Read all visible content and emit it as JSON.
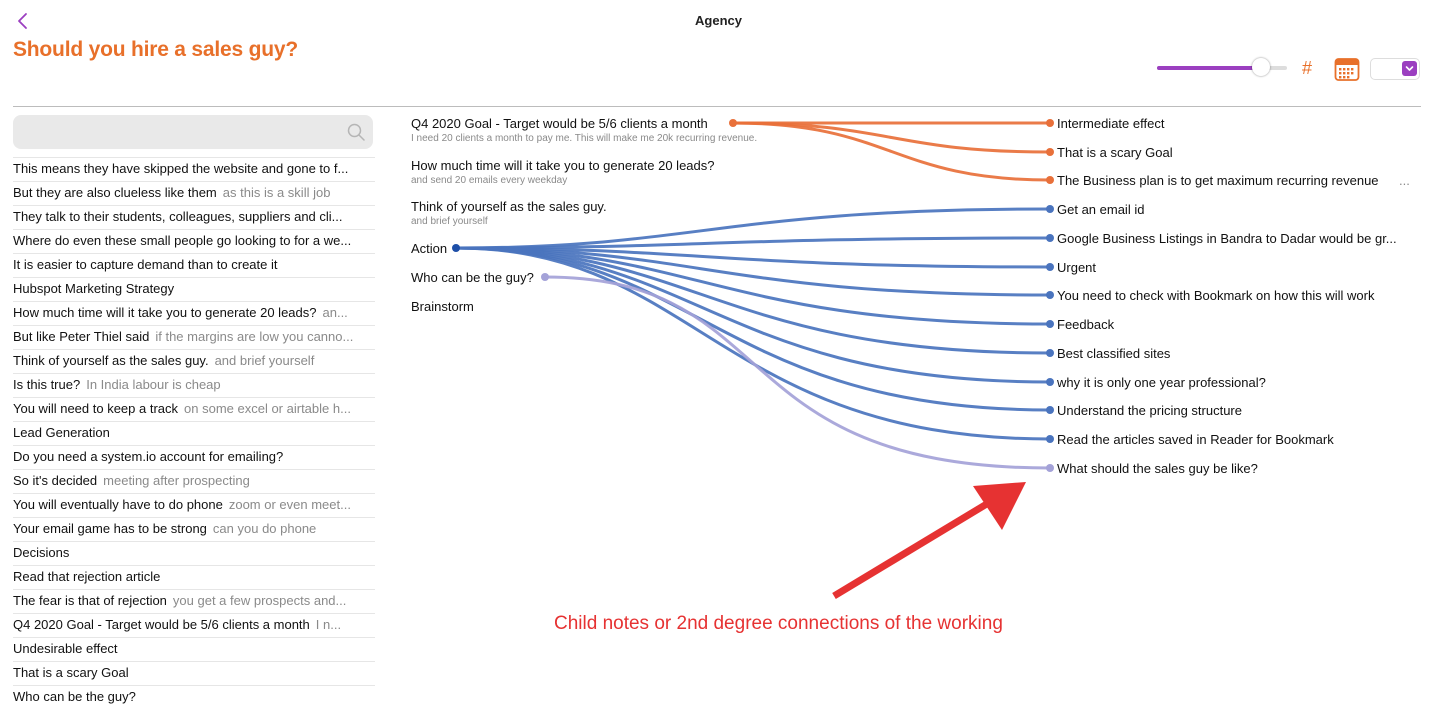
{
  "window": {
    "title": "Agency"
  },
  "page": {
    "title": "Should you hire a sales guy?"
  },
  "toolbar": {
    "hash_symbol": "#",
    "slider_value": 0.8,
    "accent": "#9B3FC0",
    "orange": "#E8702A",
    "calendar_icon": "calendar-icon",
    "back_icon": "chevron-left-icon"
  },
  "search": {
    "value": "",
    "placeholder": ""
  },
  "notes": [
    {
      "title": "This means they have skipped the website and gone to f...",
      "sub": ""
    },
    {
      "title": "But they are also clueless like them",
      "sub": "as this is a skill job"
    },
    {
      "title": "They talk to their students, colleagues, suppliers and cli...",
      "sub": ""
    },
    {
      "title": "Where do even these small people go looking to for a we...",
      "sub": ""
    },
    {
      "title": "It is easier to capture demand than to create it",
      "sub": ""
    },
    {
      "title": "Hubspot Marketing Strategy",
      "sub": ""
    },
    {
      "title": "How much time will it take you to generate 20 leads?",
      "sub": "an..."
    },
    {
      "title": "But like Peter Thiel said",
      "sub": "if the margins are low you canno..."
    },
    {
      "title": "Think of yourself as the sales guy.",
      "sub": "and brief yourself"
    },
    {
      "title": "Is this true?",
      "sub": "In India labour is cheap"
    },
    {
      "title": "You will need to keep a track",
      "sub": "on some excel or airtable h..."
    },
    {
      "title": "Lead Generation",
      "sub": ""
    },
    {
      "title": "Do you need a system.io account for emailing?",
      "sub": ""
    },
    {
      "title": "So it's decided",
      "sub": "meeting after prospecting"
    },
    {
      "title": "You will eventually have to do phone",
      "sub": "zoom or even meet..."
    },
    {
      "title": "Your email game has to be strong",
      "sub": "can you do phone"
    },
    {
      "title": "Decisions",
      "sub": ""
    },
    {
      "title": "Read that rejection article",
      "sub": ""
    },
    {
      "title": "The fear is that of rejection",
      "sub": "you get a few prospects and..."
    },
    {
      "title": "Q4 2020 Goal - Target would be 5/6 clients a month",
      "sub": "I n..."
    },
    {
      "title": "Undesirable effect",
      "sub": ""
    },
    {
      "title": "That is a scary Goal",
      "sub": ""
    },
    {
      "title": "Who can be the guy?",
      "sub": ""
    }
  ],
  "graph": {
    "colors": {
      "orange": "#E8703A",
      "blue_dark": "#1E4FA8",
      "blue": "#4A74BE",
      "lavender": "#A4A2D8"
    },
    "sources": [
      {
        "title": "Q4 2020 Goal - Target would be 5/6 clients a month",
        "sub": "I need 20 clients a month to pay me. This will make me 20k recurring revenue."
      },
      {
        "title": "How much time will it take you to generate 20 leads?",
        "sub": "and send 20 emails every weekday"
      },
      {
        "title": "Think of yourself as the sales guy.",
        "sub": "and brief yourself"
      },
      {
        "title": "Action",
        "sub": ""
      },
      {
        "title": "Who can be the guy?",
        "sub": ""
      },
      {
        "title": "Brainstorm",
        "sub": ""
      }
    ],
    "targets": [
      {
        "title": "Intermediate effect",
        "sub": ""
      },
      {
        "title": "That is a scary Goal",
        "sub": ""
      },
      {
        "title": "The Business plan is to get maximum recurring revenue",
        "sub": "..."
      },
      {
        "title": "Get an email id",
        "sub": ""
      },
      {
        "title": "Google Business Listings in Bandra to Dadar would be gr...",
        "sub": ""
      },
      {
        "title": "Urgent",
        "sub": ""
      },
      {
        "title": "You need to check with Bookmark on how this will work",
        "sub": ""
      },
      {
        "title": "Feedback",
        "sub": ""
      },
      {
        "title": "Best classified sites",
        "sub": ""
      },
      {
        "title": "why it is only one year professional?",
        "sub": ""
      },
      {
        "title": "Understand the pricing structure",
        "sub": ""
      },
      {
        "title": "Read the articles saved in Reader for Bookmark",
        "sub": ""
      },
      {
        "title": "What should the sales guy be like?",
        "sub": ""
      }
    ],
    "links": [
      {
        "from": 0,
        "to": 0,
        "color": "orange"
      },
      {
        "from": 0,
        "to": 1,
        "color": "orange"
      },
      {
        "from": 0,
        "to": 2,
        "color": "orange"
      },
      {
        "from": 3,
        "to": 3,
        "color": "blue"
      },
      {
        "from": 3,
        "to": 4,
        "color": "blue"
      },
      {
        "from": 3,
        "to": 5,
        "color": "blue"
      },
      {
        "from": 3,
        "to": 6,
        "color": "blue"
      },
      {
        "from": 3,
        "to": 7,
        "color": "blue"
      },
      {
        "from": 3,
        "to": 8,
        "color": "blue"
      },
      {
        "from": 3,
        "to": 9,
        "color": "blue"
      },
      {
        "from": 3,
        "to": 10,
        "color": "blue"
      },
      {
        "from": 3,
        "to": 11,
        "color": "blue"
      },
      {
        "from": 4,
        "to": 12,
        "color": "lavender"
      }
    ]
  },
  "annotation": {
    "text": "Child notes or 2nd degree connections of the working",
    "color": "#E63232"
  }
}
